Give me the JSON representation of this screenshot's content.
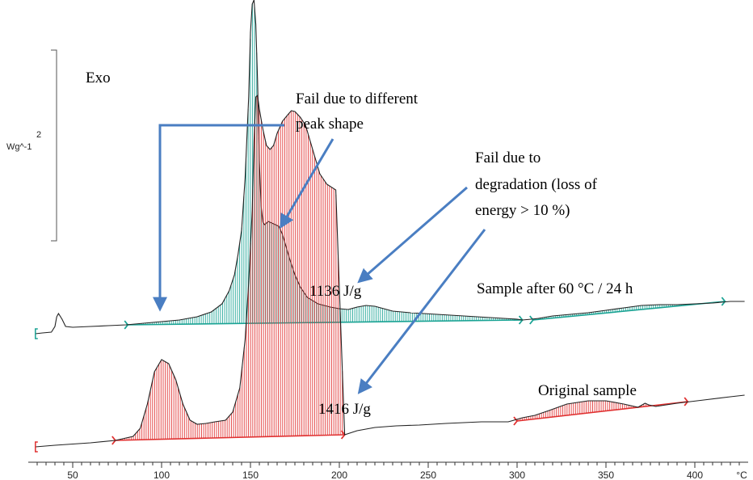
{
  "chart_data": {
    "type": "line",
    "xlabel": "°C",
    "xlim": [
      25,
      430
    ],
    "x_ticks": [
      50,
      100,
      150,
      200,
      250,
      300,
      350,
      400
    ],
    "scale_bar": {
      "value": "2",
      "unit": "Wg^-1"
    },
    "exo_label": "Exo",
    "series": [
      {
        "name": "Sample after 60 °C / 24 h",
        "color": "#1aa394",
        "enthalpy_label": "1136 J/g",
        "points": [
          [
            29,
            413
          ],
          [
            33,
            412
          ],
          [
            38,
            411
          ],
          [
            40,
            404
          ],
          [
            41,
            392
          ],
          [
            42,
            388
          ],
          [
            44,
            395
          ],
          [
            46,
            404
          ],
          [
            50,
            405
          ],
          [
            60,
            404
          ],
          [
            70,
            403
          ],
          [
            80,
            402
          ],
          [
            85,
            401
          ],
          [
            90,
            400
          ],
          [
            100,
            398
          ],
          [
            110,
            396
          ],
          [
            120,
            392
          ],
          [
            128,
            386
          ],
          [
            134,
            376
          ],
          [
            138,
            360
          ],
          [
            141,
            340
          ],
          [
            143,
            315
          ],
          [
            145,
            285
          ],
          [
            147,
            220
          ],
          [
            149,
            120
          ],
          [
            150,
            40
          ],
          [
            151,
            5
          ],
          [
            152,
            0
          ],
          [
            153,
            30
          ],
          [
            154,
            100
          ],
          [
            155,
            200
          ],
          [
            156,
            255
          ],
          [
            157,
            275
          ],
          [
            158,
            278
          ],
          [
            159,
            276
          ],
          [
            160,
            274
          ],
          [
            162,
            276
          ],
          [
            164,
            278
          ],
          [
            166,
            280
          ],
          [
            168,
            290
          ],
          [
            170,
            305
          ],
          [
            172,
            320
          ],
          [
            175,
            340
          ],
          [
            178,
            355
          ],
          [
            182,
            368
          ],
          [
            188,
            376
          ],
          [
            195,
            380
          ],
          [
            200,
            382
          ],
          [
            205,
            383
          ],
          [
            210,
            380
          ],
          [
            215,
            378
          ],
          [
            220,
            379
          ],
          [
            225,
            382
          ],
          [
            230,
            385
          ],
          [
            240,
            387
          ],
          [
            255,
            389
          ],
          [
            270,
            391
          ],
          [
            285,
            393
          ],
          [
            300,
            395
          ],
          [
            303,
            396
          ],
          [
            308,
            395
          ],
          [
            312,
            394
          ],
          [
            320,
            391
          ],
          [
            330,
            389
          ],
          [
            340,
            387
          ],
          [
            350,
            384
          ],
          [
            360,
            381
          ],
          [
            370,
            378
          ],
          [
            380,
            377
          ],
          [
            390,
            377
          ],
          [
            400,
            376
          ],
          [
            410,
            375
          ],
          [
            415,
            374
          ],
          [
            420,
            373
          ],
          [
            428,
            373
          ]
        ],
        "baseline": [
          [
            81,
            402
          ],
          [
            303,
            396
          ]
        ],
        "baseline2": [
          [
            309,
            396
          ],
          [
            417,
            373
          ]
        ]
      },
      {
        "name": "Original sample",
        "color": "#e03030",
        "enthalpy_label": "1416 J/g",
        "points": [
          [
            29,
            553
          ],
          [
            40,
            551
          ],
          [
            60,
            548
          ],
          [
            74,
            545
          ],
          [
            84,
            540
          ],
          [
            88,
            530
          ],
          [
            92,
            500
          ],
          [
            96,
            460
          ],
          [
            100,
            445
          ],
          [
            104,
            450
          ],
          [
            108,
            470
          ],
          [
            112,
            500
          ],
          [
            116,
            520
          ],
          [
            120,
            525
          ],
          [
            125,
            524
          ],
          [
            130,
            522
          ],
          [
            136,
            520
          ],
          [
            140,
            510
          ],
          [
            144,
            480
          ],
          [
            147,
            420
          ],
          [
            149,
            350
          ],
          [
            151,
            260
          ],
          [
            152,
            175
          ],
          [
            153,
            120
          ],
          [
            154,
            118
          ],
          [
            155,
            135
          ],
          [
            157,
            160
          ],
          [
            159,
            180
          ],
          [
            161,
            185
          ],
          [
            163,
            180
          ],
          [
            165,
            165
          ],
          [
            168,
            150
          ],
          [
            171,
            142
          ],
          [
            173,
            137
          ],
          [
            175,
            138
          ],
          [
            178,
            145
          ],
          [
            181,
            155
          ],
          [
            185,
            185
          ],
          [
            189,
            215
          ],
          [
            193,
            228
          ],
          [
            198,
            235
          ],
          [
            203,
            538
          ],
          [
            210,
            533
          ],
          [
            220,
            529
          ],
          [
            232,
            527
          ],
          [
            245,
            526
          ],
          [
            260,
            524
          ],
          [
            280,
            522
          ],
          [
            295,
            522
          ],
          [
            303,
            517
          ],
          [
            310,
            514
          ],
          [
            318,
            508
          ],
          [
            328,
            500
          ],
          [
            340,
            496
          ],
          [
            350,
            496
          ],
          [
            360,
            500
          ],
          [
            368,
            504
          ],
          [
            372,
            499
          ],
          [
            374,
            501
          ],
          [
            378,
            503
          ],
          [
            390,
            499
          ],
          [
            405,
            495
          ],
          [
            420,
            491
          ],
          [
            428,
            489
          ]
        ],
        "baseline": [
          [
            74,
            545
          ],
          [
            203,
            538
          ]
        ],
        "baseline2": [
          [
            300,
            521
          ],
          [
            396,
            497
          ]
        ]
      }
    ],
    "annotations": [
      {
        "text": "Fail due to different",
        "text2": "peak shape"
      },
      {
        "text": "Fail due to",
        "text2": "degradation (loss of",
        "text3": "energy > 10 %)"
      }
    ]
  }
}
